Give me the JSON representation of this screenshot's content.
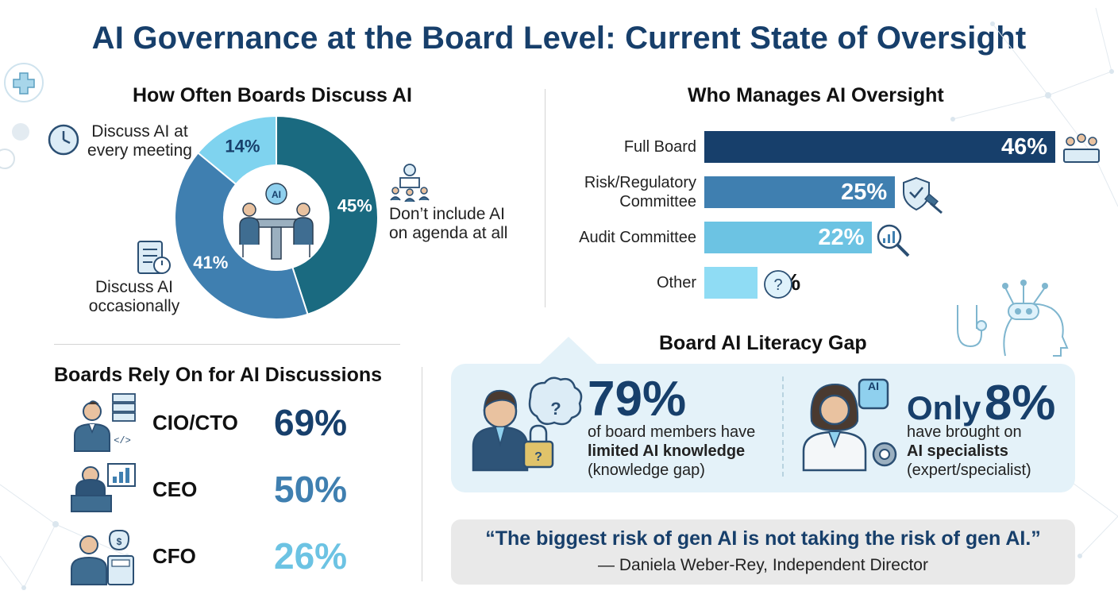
{
  "title": "AI Governance at the Board Level: Current State of Oversight",
  "discuss_section": {
    "title": "How Often Boards Discuss AI",
    "labels": {
      "every_meeting_line1": "Discuss AI at",
      "every_meeting_line2": "every meeting",
      "occasionally_line1": "Discuss AI",
      "occasionally_line2": "occasionally",
      "not_included_line1": "Don’t include AI",
      "not_included_line2": "on agenda at all"
    },
    "center_badge": "AI"
  },
  "oversight_section": {
    "title": "Who Manages AI Oversight"
  },
  "rely_section": {
    "title": "Boards Rely On for AI Discussions",
    "items": [
      {
        "name": "CIO/CTO",
        "value": "69%",
        "color": "#173f6b"
      },
      {
        "name": "CEO",
        "value": "50%",
        "color": "#3f7fb0"
      },
      {
        "name": "CFO",
        "value": "26%",
        "color": "#6cc3e3"
      }
    ]
  },
  "literacy_section": {
    "title": "Board AI Literacy Gap",
    "left": {
      "big": "79%",
      "line1": "of board members have",
      "line2": "limited AI knowledge",
      "line3": "(knowledge gap)"
    },
    "right": {
      "only": "Only",
      "big": "8%",
      "line1": "have brought on",
      "line2": "AI specialists",
      "line3": "(expert/specialist)",
      "chip_label": "AI"
    }
  },
  "quote": {
    "text": "“The biggest risk of gen AI is not taking the risk of gen AI.”",
    "attribution": "— Daniela Weber-Rey, Independent Director"
  },
  "chart_data": [
    {
      "type": "pie",
      "title": "How Often Boards Discuss AI",
      "categories": [
        "Don’t include AI on agenda at all",
        "Discuss AI occasionally",
        "Discuss AI at every meeting"
      ],
      "values": [
        45,
        41,
        14
      ],
      "value_labels": [
        "45%",
        "41%",
        "14%"
      ],
      "colors": [
        "#1a6a80",
        "#3f7fb0",
        "#7fd3ef"
      ]
    },
    {
      "type": "bar",
      "title": "Who Manages AI Oversight",
      "categories": [
        "Full Board",
        "Risk/Regulatory Committee",
        "Audit Committee",
        "Other"
      ],
      "category_lines": [
        [
          "Full Board"
        ],
        [
          "Risk/Regulatory",
          "Committee"
        ],
        [
          "Audit Committee"
        ],
        [
          "Other"
        ]
      ],
      "values": [
        46,
        25,
        22,
        7
      ],
      "value_labels": [
        "46%",
        "25%",
        "22%",
        "7%"
      ],
      "colors": [
        "#173f6b",
        "#3f7fb0",
        "#6cc3e3",
        "#8fdcf4"
      ]
    }
  ]
}
